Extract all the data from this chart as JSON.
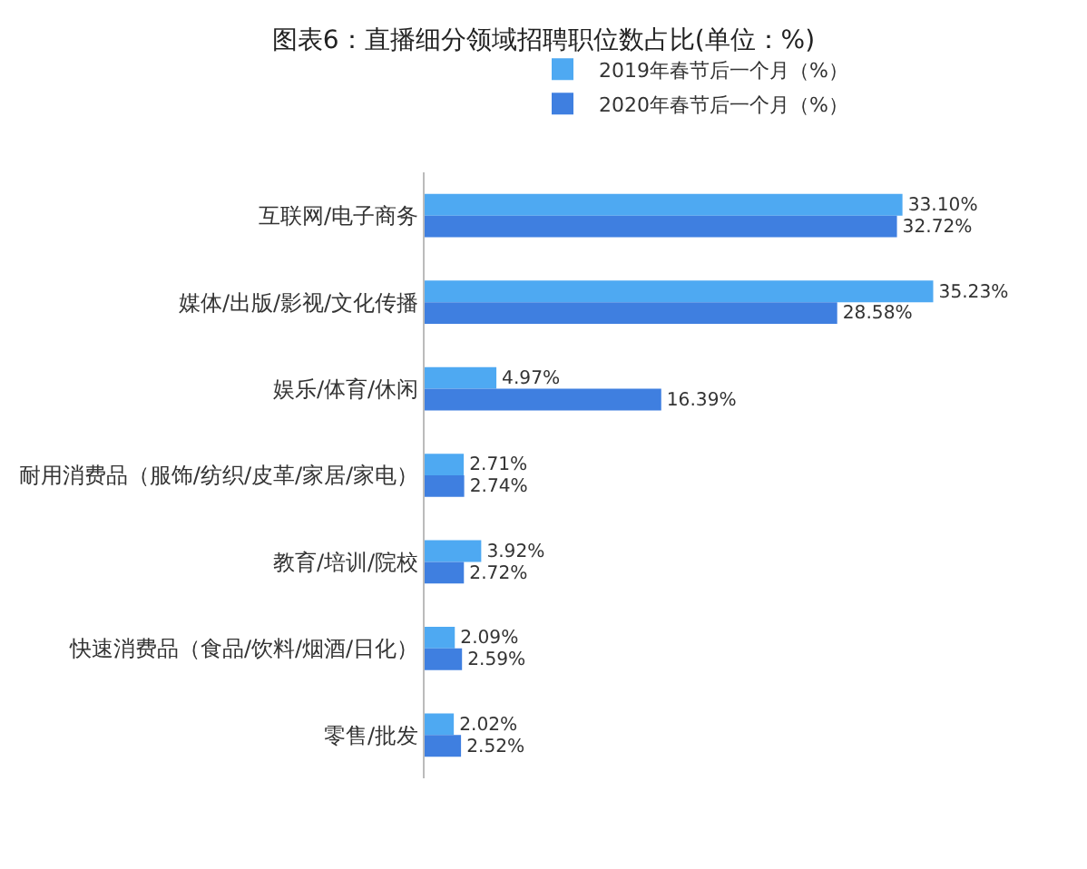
{
  "chart_data": {
    "type": "bar",
    "orientation": "horizontal",
    "title": "图表6：直播细分领域招聘职位数占比(单位：%)",
    "categories": [
      "互联网/电子商务",
      "媒体/出版/影视/文化传播",
      "娱乐/体育/休闲",
      "耐用消费品（服饰/纺织/皮革/家居/家电）",
      "教育/培训/院校",
      "快速消费品（食品/饮料/烟酒/日化）",
      "零售/批发"
    ],
    "series": [
      {
        "name": "2019年春节后一个月（%）",
        "color": "#4ea9f2",
        "values": [
          33.1,
          35.23,
          4.97,
          2.71,
          3.92,
          2.09,
          2.02
        ],
        "value_labels": [
          "33.10%",
          "35.23%",
          "4.97%",
          "2.71%",
          "3.92%",
          "2.09%",
          "2.02%"
        ]
      },
      {
        "name": "2020年春节后一个月（%）",
        "color": "#3f7fe0",
        "values": [
          32.72,
          28.58,
          16.39,
          2.74,
          2.72,
          2.59,
          2.52
        ],
        "value_labels": [
          "32.72%",
          "28.58%",
          "16.39%",
          "2.74%",
          "2.72%",
          "2.59%",
          "2.52%"
        ]
      }
    ],
    "legend": "top",
    "grid": false
  }
}
